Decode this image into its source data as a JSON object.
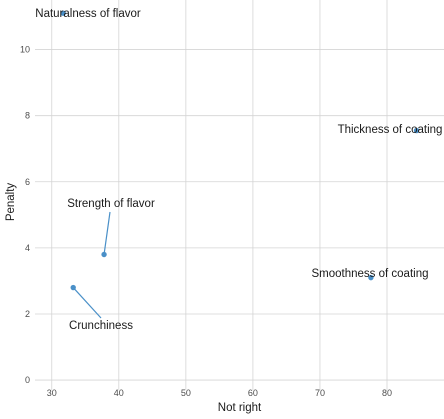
{
  "chart_data": {
    "type": "scatter",
    "title": "",
    "xlabel": "Not right",
    "ylabel": "Penalty",
    "xlim": [
      27.5,
      88.5
    ],
    "ylim": [
      -0.3,
      11.5
    ],
    "xticks": [
      30,
      40,
      50,
      60,
      70,
      80
    ],
    "yticks": [
      0,
      2,
      4,
      6,
      8,
      10
    ],
    "grid": true,
    "legend": "none",
    "point_color": "#4a90c8",
    "points": [
      {
        "label": "Naturalness of flavor",
        "x": 31.7,
        "y": 11.1
      },
      {
        "label": "Thickness of coating",
        "x": 84.4,
        "y": 7.55
      },
      {
        "label": "Strength of flavor",
        "x": 37.8,
        "y": 3.8
      },
      {
        "label": "Smoothness of coating",
        "x": 77.6,
        "y": 3.1
      },
      {
        "label": "Crunchiness",
        "x": 33.2,
        "y": 2.8
      }
    ]
  }
}
